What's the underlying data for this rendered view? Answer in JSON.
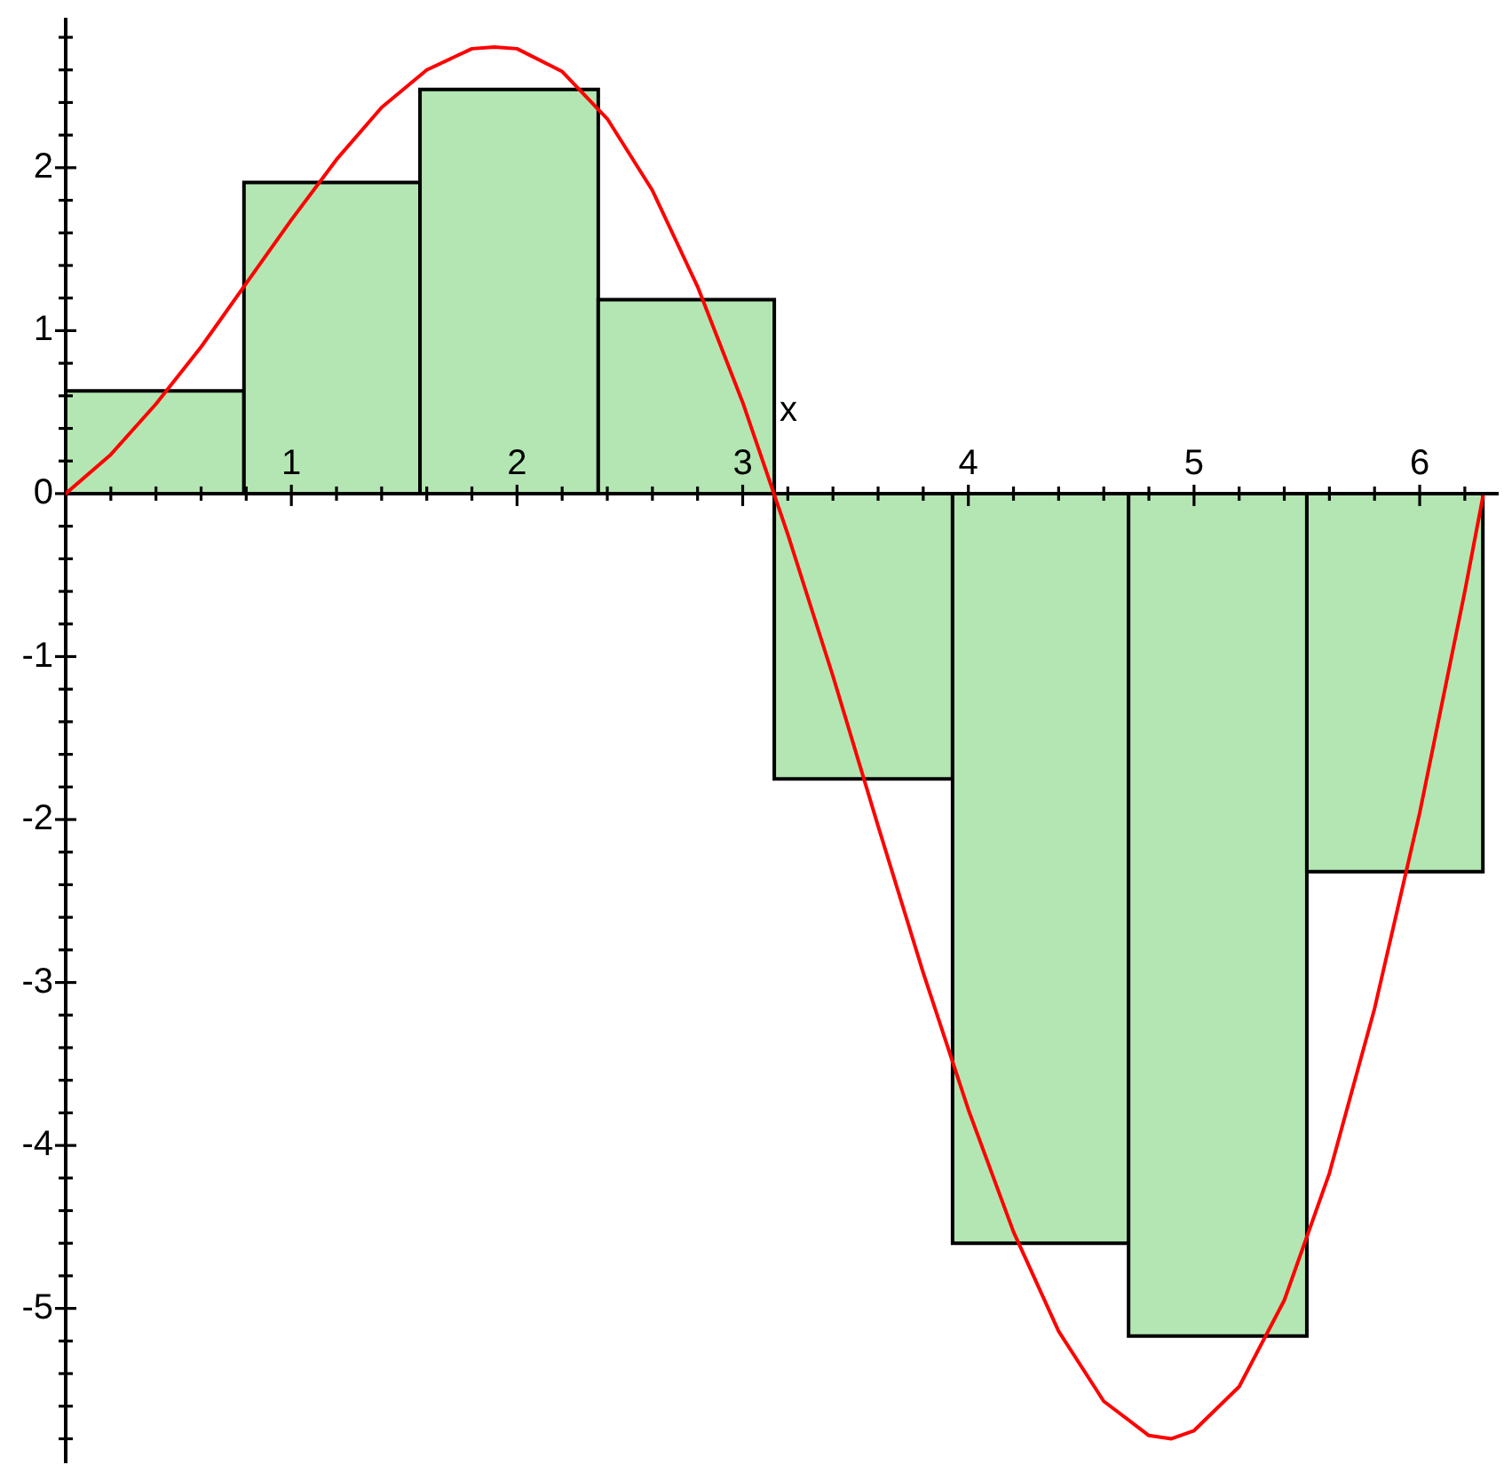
{
  "chart_data": {
    "type": "histogram",
    "xlabel": "x",
    "bins": [
      0,
      0.79,
      1.57,
      2.36,
      3.14,
      3.93,
      4.71,
      5.5,
      6.28
    ],
    "series": [
      {
        "color": "#b3e6b3",
        "values": [
          0.63,
          1.91,
          2.48,
          1.19,
          -1.75,
          -4.6,
          -5.17,
          -2.32
        ]
      },
      {
        "type": "line",
        "color": "#ff0000",
        "x": [
          0,
          0.2,
          0.4,
          0.6,
          0.8,
          1,
          1.2,
          1.4,
          1.6,
          1.8,
          1.9,
          2,
          2.2,
          2.4,
          2.6,
          2.8,
          3,
          3.2,
          3.4,
          3.6,
          3.8,
          4,
          4.2,
          4.4,
          4.6,
          4.8,
          4.9,
          5,
          5.2,
          5.4,
          5.6,
          5.8,
          6,
          6.2,
          6.28
        ],
        "values": [
          0,
          0.24,
          0.55,
          0.9,
          1.29,
          1.68,
          2.05,
          2.37,
          2.6,
          2.73,
          2.74,
          2.73,
          2.59,
          2.3,
          1.86,
          1.27,
          0.56,
          -0.25,
          -1.12,
          -2.04,
          -2.94,
          -3.78,
          -4.53,
          -5.14,
          -5.57,
          -5.78,
          -5.8,
          -5.75,
          -5.48,
          -4.95,
          -4.17,
          -3.16,
          -1.96,
          -0.6,
          -0.02
        ]
      }
    ],
    "xlim": [
      0,
      6.35
    ],
    "ylim": [
      -5.95,
      2.92
    ],
    "xticks": [
      {
        "value": 0.2,
        "label": null
      },
      {
        "value": 0.4,
        "label": null
      },
      {
        "value": 0.6,
        "label": null
      },
      {
        "value": 0.8,
        "label": null
      },
      1,
      {
        "value": 1.2,
        "label": null
      },
      {
        "value": 1.4,
        "label": null
      },
      {
        "value": 1.6,
        "label": null
      },
      {
        "value": 1.8,
        "label": null
      },
      2,
      {
        "value": 2.2,
        "label": null
      },
      {
        "value": 2.4,
        "label": null
      },
      {
        "value": 2.6,
        "label": null
      },
      {
        "value": 2.8,
        "label": null
      },
      3,
      {
        "value": 3.2,
        "label": null
      },
      {
        "value": 3.4,
        "label": null
      },
      {
        "value": 3.6,
        "label": null
      },
      {
        "value": 3.8,
        "label": null
      },
      4,
      {
        "value": 4.2,
        "label": null
      },
      {
        "value": 4.4,
        "label": null
      },
      {
        "value": 4.6,
        "label": null
      },
      {
        "value": 4.8,
        "label": null
      },
      5,
      {
        "value": 5.2,
        "label": null
      },
      {
        "value": 5.4,
        "label": null
      },
      {
        "value": 5.6,
        "label": null
      },
      {
        "value": 5.8,
        "label": null
      },
      6,
      {
        "value": 6.2,
        "label": null
      }
    ],
    "yticks": [
      {
        "value": -5.8,
        "label": null
      },
      {
        "value": -5.6,
        "label": null
      },
      {
        "value": -5.4,
        "label": null
      },
      {
        "value": -5.2,
        "label": null
      },
      -5,
      {
        "value": -4.8,
        "label": null
      },
      {
        "value": -4.6,
        "label": null
      },
      {
        "value": -4.4,
        "label": null
      },
      {
        "value": -4.2,
        "label": null
      },
      -4,
      {
        "value": -3.8,
        "label": null
      },
      {
        "value": -3.6,
        "label": null
      },
      {
        "value": -3.4,
        "label": null
      },
      {
        "value": -3.2,
        "label": null
      },
      -3,
      {
        "value": -2.8,
        "label": null
      },
      {
        "value": -2.6,
        "label": null
      },
      {
        "value": -2.4,
        "label": null
      },
      {
        "value": -2.2,
        "label": null
      },
      -2,
      {
        "value": -1.8,
        "label": null
      },
      {
        "value": -1.6,
        "label": null
      },
      {
        "value": -1.4,
        "label": null
      },
      {
        "value": -1.2,
        "label": null
      },
      -1,
      {
        "value": -0.8,
        "label": null
      },
      {
        "value": -0.6,
        "label": null
      },
      {
        "value": -0.4,
        "label": null
      },
      {
        "value": -0.2,
        "label": null
      },
      0,
      {
        "value": 0.2,
        "label": null
      },
      {
        "value": 0.4,
        "label": null
      },
      {
        "value": 0.6,
        "label": null
      },
      {
        "value": 0.8,
        "label": null
      },
      1,
      {
        "value": 1.2,
        "label": null
      },
      {
        "value": 1.4,
        "label": null
      },
      {
        "value": 1.6,
        "label": null
      },
      {
        "value": 1.8,
        "label": null
      },
      2,
      {
        "value": 2.2,
        "label": null
      },
      {
        "value": 2.4,
        "label": null
      },
      {
        "value": 2.6,
        "label": null
      },
      {
        "value": 2.8,
        "label": null
      }
    ]
  }
}
